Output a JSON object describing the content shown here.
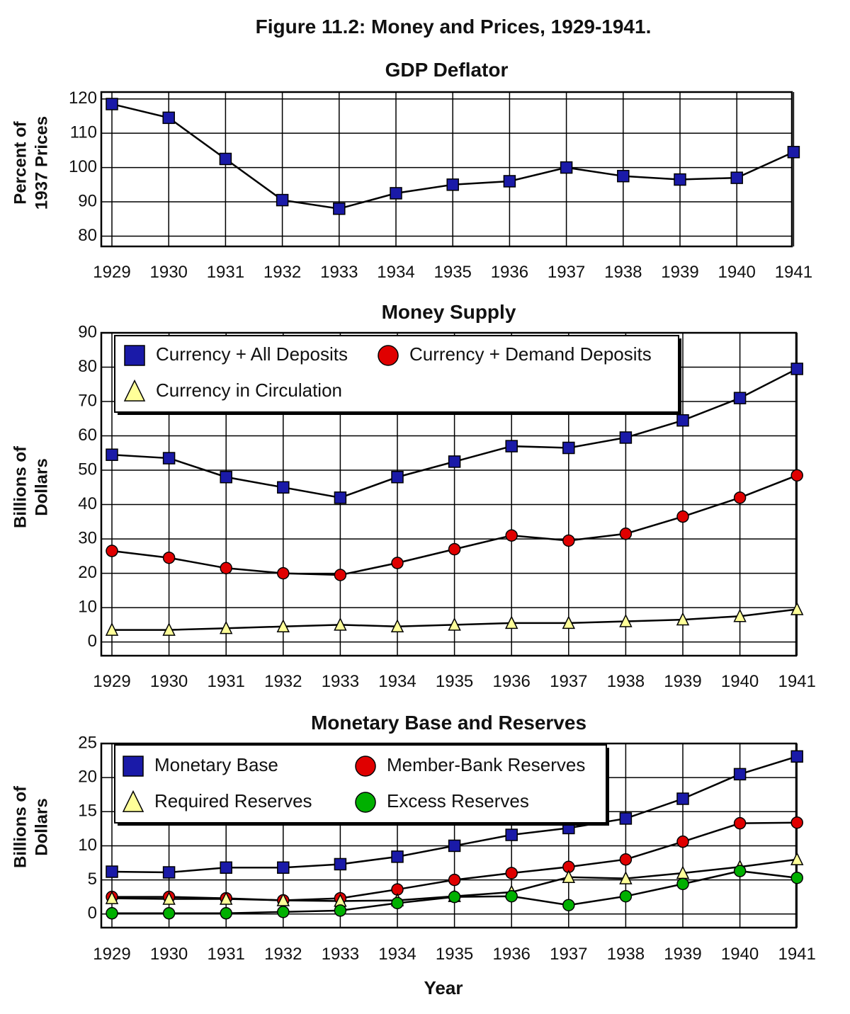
{
  "figure_title": "Figure 11.2: Money and Prices, 1929-1941.",
  "x_axis_title": "Year",
  "colors": {
    "blue": "#1a1aa8",
    "red": "#e00000",
    "yellow": "#ffff99",
    "green": "#00b000"
  },
  "chart_data": [
    {
      "type": "line",
      "title": "GDP Deflator",
      "ylabel_lines": [
        "Percent of",
        "1937 Prices"
      ],
      "ylim": [
        77,
        122
      ],
      "yticks": [
        80,
        90,
        100,
        110,
        120
      ],
      "categories": [
        "1929",
        "1930",
        "1931",
        "1932",
        "1933",
        "1934",
        "1935",
        "1936",
        "1937",
        "1938",
        "1939",
        "1940",
        "1941"
      ],
      "series": [
        {
          "name": "GDP Deflator",
          "marker": "square",
          "color": "blue",
          "values": [
            118.5,
            114.5,
            102.5,
            90.5,
            88,
            92.5,
            95,
            96,
            100,
            97.5,
            96.5,
            97,
            104.5
          ]
        }
      ]
    },
    {
      "type": "line",
      "title": "Money Supply",
      "ylabel_lines": [
        "Billions of",
        "Dollars"
      ],
      "ylim": [
        -4,
        90
      ],
      "yticks": [
        0,
        10,
        20,
        30,
        40,
        50,
        60,
        70,
        80,
        90
      ],
      "categories": [
        "1929",
        "1930",
        "1931",
        "1932",
        "1933",
        "1934",
        "1935",
        "1936",
        "1937",
        "1938",
        "1939",
        "1940",
        "1941"
      ],
      "legend": [
        {
          "label": "Currency + All Deposits",
          "marker": "square",
          "color": "blue"
        },
        {
          "label": "Currency + Demand Deposits",
          "marker": "circle",
          "color": "red"
        },
        {
          "label": "Currency in Circulation",
          "marker": "triangle",
          "color": "yellow"
        }
      ],
      "series": [
        {
          "name": "Currency + All Deposits",
          "marker": "square",
          "color": "blue",
          "values": [
            54.5,
            53.5,
            48,
            45,
            42,
            48,
            52.5,
            57,
            56.5,
            59.5,
            64.5,
            71,
            79.5
          ]
        },
        {
          "name": "Currency + Demand Deposits",
          "marker": "circle",
          "color": "red",
          "values": [
            26.5,
            24.5,
            21.5,
            20,
            19.5,
            23,
            27,
            31,
            29.5,
            31.5,
            36.5,
            42,
            48.5
          ]
        },
        {
          "name": "Currency in Circulation",
          "marker": "triangle",
          "color": "yellow",
          "values": [
            3.5,
            3.5,
            4,
            4.5,
            5,
            4.5,
            5,
            5.5,
            5.5,
            6,
            6.5,
            7.5,
            9.5
          ]
        }
      ]
    },
    {
      "type": "line",
      "title": "Monetary Base and Reserves",
      "ylabel_lines": [
        "Billions of",
        "Dollars"
      ],
      "ylim": [
        -2,
        25
      ],
      "yticks": [
        0,
        5,
        10,
        15,
        20,
        25
      ],
      "categories": [
        "1929",
        "1930",
        "1931",
        "1932",
        "1933",
        "1934",
        "1935",
        "1936",
        "1937",
        "1938",
        "1939",
        "1940",
        "1941"
      ],
      "legend": [
        {
          "label": "Monetary Base",
          "marker": "square",
          "color": "blue"
        },
        {
          "label": "Member-Bank Reserves",
          "marker": "circle",
          "color": "red"
        },
        {
          "label": "Required Reserves",
          "marker": "triangle",
          "color": "yellow"
        },
        {
          "label": "Excess Reserves",
          "marker": "circle",
          "color": "green"
        }
      ],
      "series": [
        {
          "name": "Monetary Base",
          "marker": "square",
          "color": "blue",
          "values": [
            6.2,
            6.1,
            6.8,
            6.8,
            7.3,
            8.4,
            10,
            11.6,
            12.6,
            14,
            16.9,
            20.5,
            23.1
          ]
        },
        {
          "name": "Member-Bank Reserves",
          "marker": "circle",
          "color": "red",
          "values": [
            2.5,
            2.5,
            2.3,
            2.0,
            2.3,
            3.6,
            5.0,
            6.0,
            6.9,
            8.0,
            10.6,
            13.3,
            13.4
          ]
        },
        {
          "name": "Required Reserves",
          "marker": "triangle",
          "color": "yellow",
          "values": [
            2.3,
            2.2,
            2.2,
            2.0,
            1.9,
            2.0,
            2.6,
            3.2,
            5.4,
            5.2,
            6.0,
            6.9,
            8.0
          ]
        },
        {
          "name": "Excess Reserves",
          "marker": "circle",
          "color": "green",
          "values": [
            0.1,
            0.1,
            0.1,
            0.3,
            0.5,
            1.6,
            2.5,
            2.6,
            1.3,
            2.6,
            4.4,
            6.3,
            5.3
          ]
        }
      ]
    }
  ]
}
